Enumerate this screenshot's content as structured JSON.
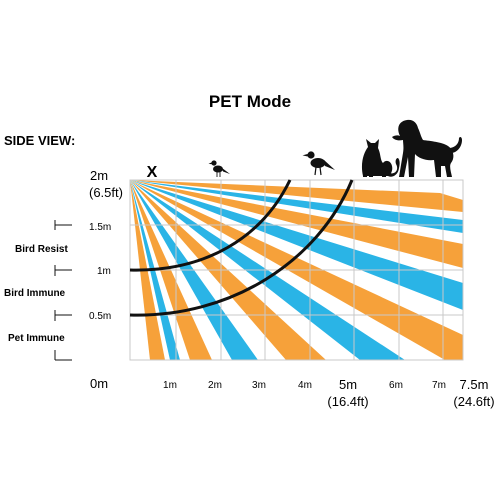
{
  "title": "PET Mode",
  "view_label": "SIDE VIEW:",
  "y_labels": {
    "top": "2m",
    "top_ft": "(6.5ft)",
    "h15": "1.5m",
    "h10": "1m",
    "h05": "0.5m",
    "h0": "0m"
  },
  "zones": [
    "Bird Resist",
    "Bird Immune",
    "Pet Immune"
  ],
  "x_labels": {
    "m1": "1m",
    "m2": "2m",
    "m3": "3m",
    "m4": "4m",
    "m5": "5m",
    "m5_ft": "(16.4ft)",
    "m6": "6m",
    "m7": "7m",
    "m75": "7.5m",
    "m75_ft": "(24.6ft)"
  },
  "sensor_marker": "X",
  "animals": [
    "small-bird",
    "large-bird",
    "cat",
    "dog"
  ],
  "colors": {
    "orange_beam": "#f6a13a",
    "blue_beam": "#2ab4e6",
    "grid": "#c9c9c9",
    "curve": "#111111"
  }
}
